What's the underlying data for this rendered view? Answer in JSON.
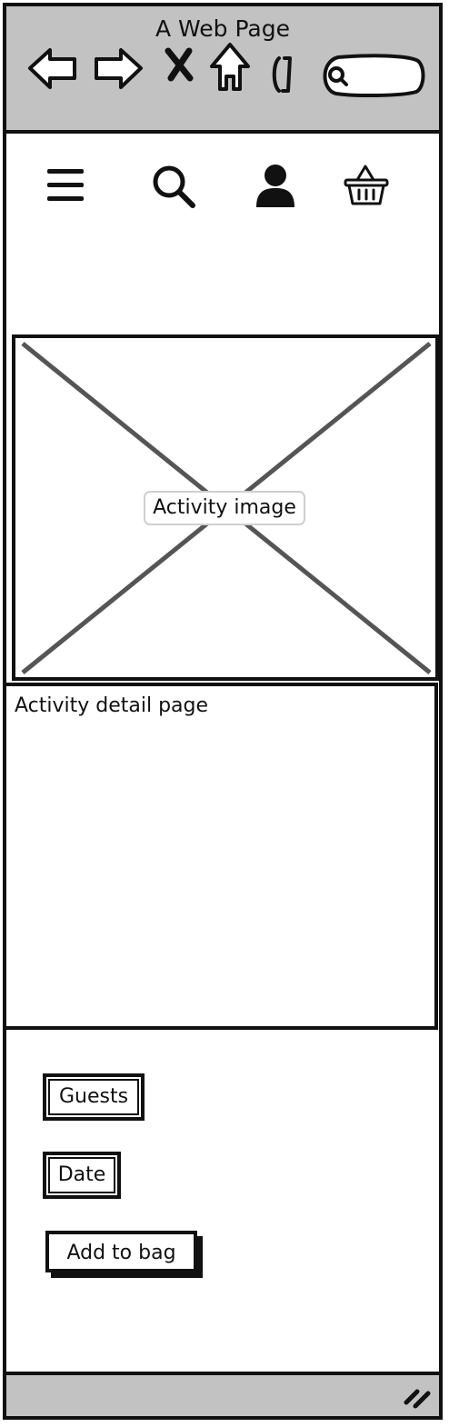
{
  "window": {
    "title": "A Web Page",
    "search_placeholder": ""
  },
  "navbar": {
    "menu_icon": "hamburger-menu-icon",
    "search_icon": "search-icon",
    "account_icon": "user-icon",
    "bag_icon": "basket-icon"
  },
  "hero": {
    "image_label": "Activity image"
  },
  "detail": {
    "title": "Activity detail page"
  },
  "form": {
    "guests_label": "Guests",
    "date_label": "Date",
    "add_to_bag_label": "Add to bag"
  }
}
